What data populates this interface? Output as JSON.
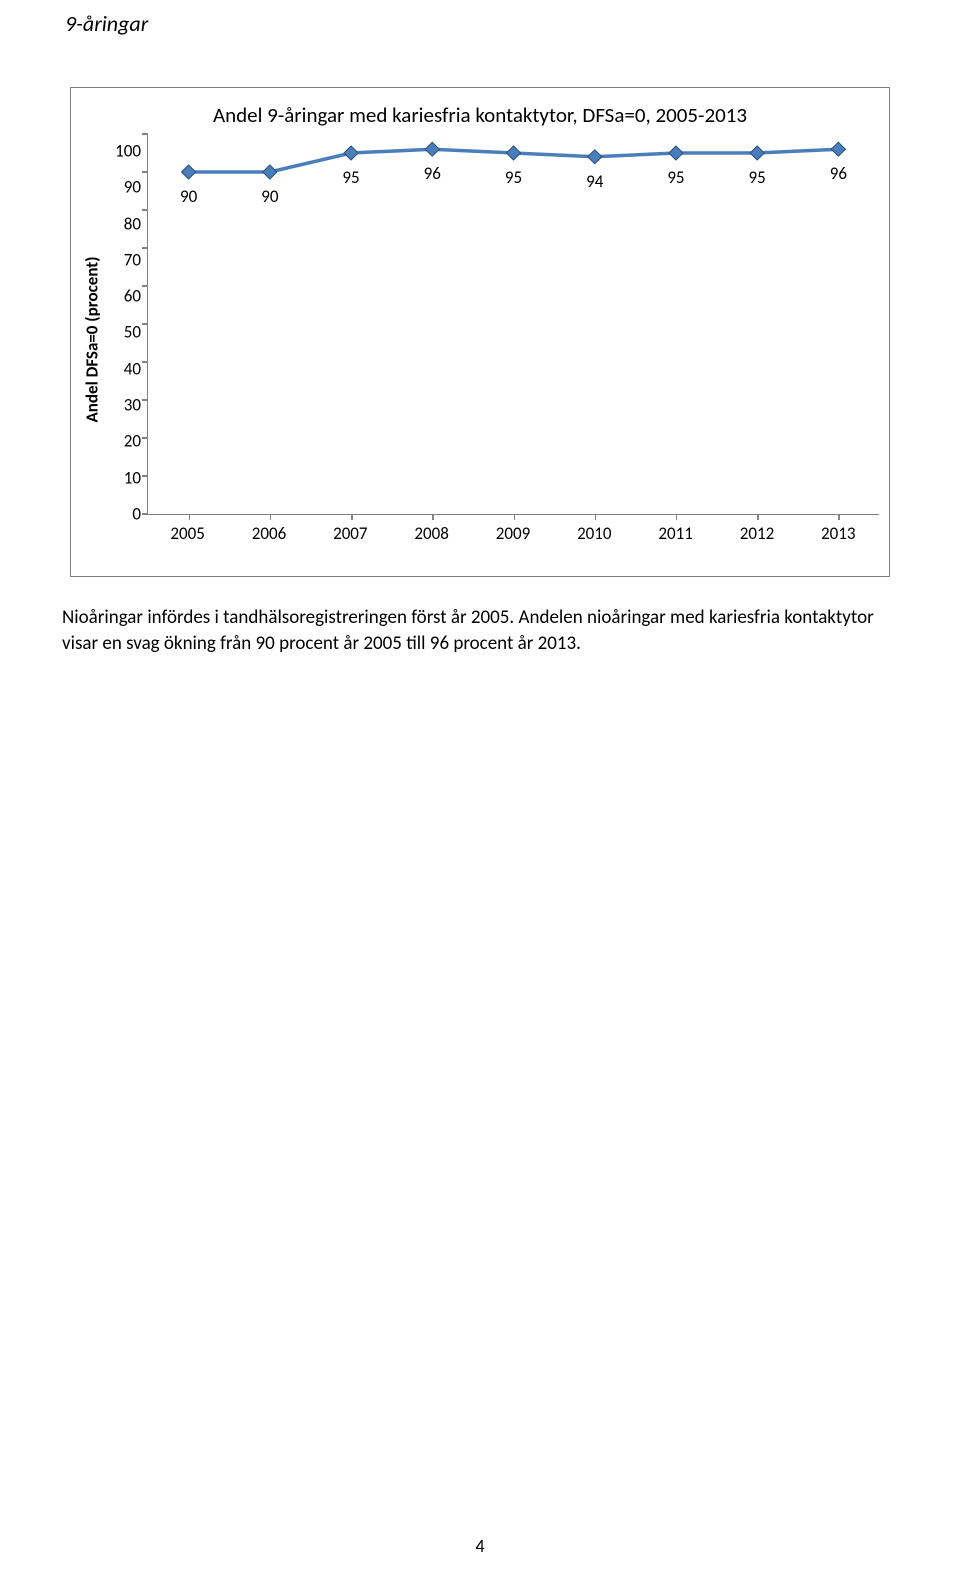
{
  "heading": "9-åringar",
  "chart": {
    "type": "line",
    "title": "Andel 9-åringar med kariesfria kontaktytor, DFSa=0, 2005-2013",
    "y_label": "Andel DFSa=0 (procent)",
    "categories": [
      "2005",
      "2006",
      "2007",
      "2008",
      "2009",
      "2010",
      "2011",
      "2012",
      "2013"
    ],
    "values": [
      90,
      90,
      95,
      96,
      95,
      94,
      95,
      95,
      96
    ],
    "data_labels": [
      "90",
      "90",
      "95",
      "96",
      "95",
      "94",
      "95",
      "95",
      "96"
    ],
    "y_ticks": [
      "100",
      "90",
      "80",
      "70",
      "60",
      "50",
      "40",
      "30",
      "20",
      "10",
      "0"
    ],
    "ylim_min": 0,
    "ylim_max": 100,
    "line_color": "#4a7ebb",
    "marker_fill": "#4a7ebb",
    "marker_stroke": "#2a527a",
    "axis_color": "#828282",
    "background_color": "#ffffff",
    "line_width": 3.5,
    "marker_size": 7
  },
  "body_text": "Nioåringar infördes i tandhälsoregistreringen först år 2005. Andelen nioåringar med kariesfria kontaktytor visar en svag ökning från 90 procent år 2005 till 96 procent år 2013.",
  "page_number": "4"
}
